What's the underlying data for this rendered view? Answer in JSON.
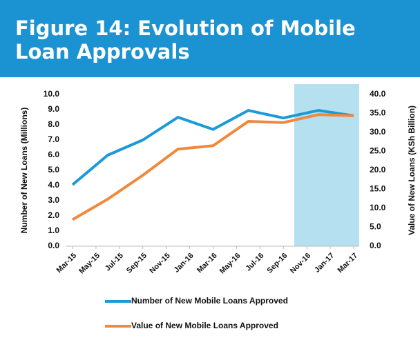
{
  "chart_data": {
    "type": "line",
    "title": "Figure 14: Evolution of Mobile Loan Approvals",
    "categories": [
      "Mar-15",
      "May-15",
      "Jul-15",
      "Sep-15",
      "Nov-15",
      "Jan-16",
      "Mar-16",
      "May-16",
      "Jul-16",
      "Sep-16",
      "Nov-16",
      "Jan-17",
      "Mar-17"
    ],
    "x": [
      0,
      1.5,
      3,
      4.5,
      6,
      7.5,
      9,
      10.5,
      12
    ],
    "series": [
      {
        "name": "Number of New Mobile Loans Approved",
        "color": "#1a9ad6",
        "values": [
          4.05,
          6.0,
          7.0,
          8.5,
          7.7,
          8.95,
          8.45,
          8.95,
          8.6
        ]
      },
      {
        "name": "Value of New Mobile Loans Approved",
        "color": "#f0893b",
        "axis": "y2",
        "values": [
          7.0,
          12.4,
          18.7,
          25.6,
          26.5,
          32.9,
          32.6,
          34.7,
          34.4
        ]
      }
    ],
    "y_label": "Number of New Loans (Millions)",
    "y2_label": "Value of New Loans (KSh Billion)",
    "ylim": [
      0,
      10
    ],
    "yticks": [
      {
        "value": 0,
        "label": "0.0"
      },
      {
        "value": 1,
        "label": "1.0"
      },
      {
        "value": 2,
        "label": "2.0"
      },
      {
        "value": 3,
        "label": "3.0"
      },
      {
        "value": 4,
        "label": "4.0"
      },
      {
        "value": 5,
        "label": "5.0"
      },
      {
        "value": 6,
        "label": "6.0"
      },
      {
        "value": 7,
        "label": "7.0"
      },
      {
        "value": 8,
        "label": "8.0"
      },
      {
        "value": 9,
        "label": "9.0"
      },
      {
        "value": 10,
        "label": "10.0"
      }
    ],
    "y2lim": [
      0,
      40
    ],
    "y2ticks": [
      {
        "value": 0,
        "label": "0.0"
      },
      {
        "value": 5,
        "label": "5.0"
      },
      {
        "value": 10,
        "label": "10.0"
      },
      {
        "value": 15,
        "label": "15.0"
      },
      {
        "value": 20,
        "label": "20.0"
      },
      {
        "value": 25,
        "label": "25.0"
      },
      {
        "value": 30,
        "label": "30.0"
      },
      {
        "value": 35,
        "label": "35.0"
      },
      {
        "value": 40,
        "label": "40.0"
      }
    ]
  }
}
